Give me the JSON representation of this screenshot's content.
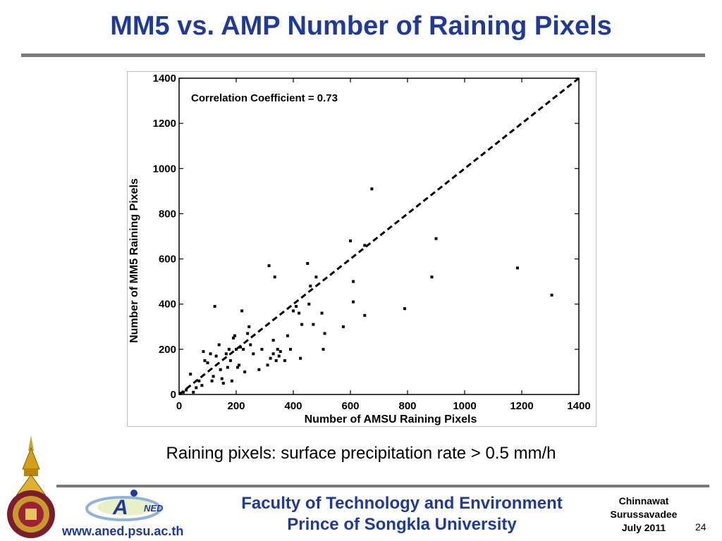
{
  "slide": {
    "title": "MM5 vs. AMP Number of Raining Pixels",
    "caption": "Raining pixels: surface precipitation rate > 0.5 mm/h",
    "footer": {
      "line1": "Faculty of Technology and Environment",
      "line2": "Prince of Songkla University",
      "author_first": "Chinnawat",
      "author_last": "Surussavadee",
      "date": "July 2011",
      "page": "24",
      "url": "www.aned.psu.ac.th",
      "logo_text": "NED"
    },
    "colors": {
      "title": "#1f3a9c",
      "rule": "#7a7a7a"
    }
  },
  "chart_data": {
    "type": "scatter",
    "annotation": "Correlation Coefficient  =  0.73",
    "xlabel": "Number of AMSU Raining Pixels",
    "ylabel": "Number of MM5 Raining Pixels",
    "xlim": [
      0,
      1400
    ],
    "ylim": [
      0,
      1400
    ],
    "xticks": [
      0,
      200,
      400,
      600,
      800,
      1000,
      1200,
      1400
    ],
    "yticks": [
      0,
      200,
      400,
      600,
      800,
      1000,
      1200,
      1400
    ],
    "reference_line": {
      "style": "dashed",
      "from": [
        0,
        0
      ],
      "to": [
        1400,
        1400
      ]
    },
    "grid": false,
    "points": [
      [
        5,
        5
      ],
      [
        15,
        10
      ],
      [
        25,
        20
      ],
      [
        40,
        90
      ],
      [
        50,
        10
      ],
      [
        60,
        30
      ],
      [
        70,
        60
      ],
      [
        80,
        40
      ],
      [
        85,
        190
      ],
      [
        90,
        150
      ],
      [
        100,
        140
      ],
      [
        110,
        180
      ],
      [
        115,
        60
      ],
      [
        120,
        80
      ],
      [
        125,
        390
      ],
      [
        130,
        170
      ],
      [
        140,
        220
      ],
      [
        145,
        110
      ],
      [
        150,
        70
      ],
      [
        155,
        50
      ],
      [
        165,
        180
      ],
      [
        170,
        120
      ],
      [
        175,
        200
      ],
      [
        180,
        150
      ],
      [
        185,
        60
      ],
      [
        190,
        250
      ],
      [
        195,
        260
      ],
      [
        200,
        200
      ],
      [
        205,
        120
      ],
      [
        210,
        130
      ],
      [
        215,
        210
      ],
      [
        220,
        370
      ],
      [
        225,
        200
      ],
      [
        230,
        100
      ],
      [
        240,
        270
      ],
      [
        245,
        300
      ],
      [
        250,
        220
      ],
      [
        260,
        180
      ],
      [
        280,
        110
      ],
      [
        290,
        200
      ],
      [
        310,
        130
      ],
      [
        315,
        570
      ],
      [
        320,
        160
      ],
      [
        330,
        240
      ],
      [
        330,
        180
      ],
      [
        335,
        520
      ],
      [
        340,
        150
      ],
      [
        345,
        200
      ],
      [
        350,
        170
      ],
      [
        355,
        190
      ],
      [
        370,
        150
      ],
      [
        380,
        260
      ],
      [
        390,
        200
      ],
      [
        400,
        370
      ],
      [
        410,
        390
      ],
      [
        420,
        360
      ],
      [
        425,
        160
      ],
      [
        430,
        310
      ],
      [
        450,
        580
      ],
      [
        455,
        400
      ],
      [
        460,
        480
      ],
      [
        470,
        310
      ],
      [
        480,
        520
      ],
      [
        500,
        360
      ],
      [
        505,
        200
      ],
      [
        510,
        270
      ],
      [
        575,
        300
      ],
      [
        600,
        680
      ],
      [
        610,
        500
      ],
      [
        610,
        410
      ],
      [
        650,
        660
      ],
      [
        650,
        350
      ],
      [
        675,
        910
      ],
      [
        790,
        380
      ],
      [
        885,
        520
      ],
      [
        900,
        690
      ],
      [
        1185,
        560
      ],
      [
        1305,
        440
      ]
    ]
  }
}
